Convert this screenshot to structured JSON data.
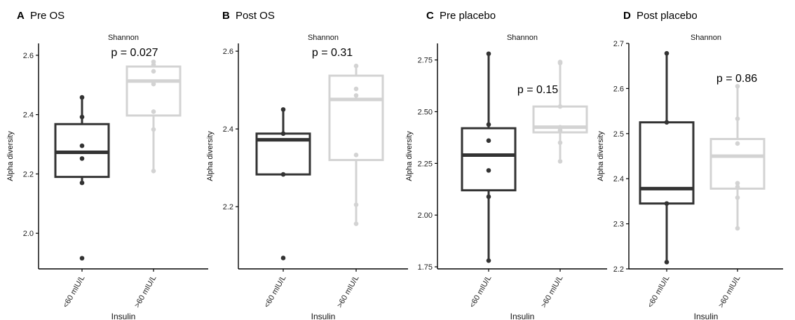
{
  "colors": {
    "group1": "#333333",
    "group2": "#d3d3d3",
    "axis": "#000000"
  },
  "chart_data": [
    {
      "type": "box",
      "panel_letter": "A",
      "panel_title": "Pre OS",
      "facet": "Shannon",
      "xlabel": "Insulin",
      "ylabel": "Alpha diversity",
      "categories": [
        "<60 mIU/L",
        ">60 mIU/L"
      ],
      "ylim": [
        1.88,
        2.64
      ],
      "yticks": [
        2.0,
        2.2,
        2.4,
        2.6
      ],
      "ytick_labels": [
        "2.0",
        "2.2",
        "2.4",
        "2.6"
      ],
      "pvalue": "p = 0.027",
      "boxes": [
        {
          "group": "<60 mIU/L",
          "min": 2.17,
          "q1": 2.19,
          "median": 2.273,
          "q3": 2.368,
          "max": 2.458,
          "points": [
            2.458,
            2.392,
            2.295,
            2.252,
            2.17,
            1.916
          ]
        },
        {
          "group": ">60 mIU/L",
          "min": 2.21,
          "q1": 2.397,
          "median": 2.513,
          "q3": 2.562,
          "max": 2.578,
          "points": [
            2.578,
            2.568,
            2.546,
            2.503,
            2.41,
            2.35,
            2.21
          ]
        }
      ]
    },
    {
      "type": "box",
      "panel_letter": "B",
      "panel_title": "Post OS",
      "facet": "Shannon",
      "xlabel": "Insulin",
      "ylabel": "Alpha diversity",
      "categories": [
        "<60 mIU/L",
        ">60 mIU/L"
      ],
      "ylim": [
        2.04,
        2.62
      ],
      "yticks": [
        2.2,
        2.4,
        2.6
      ],
      "ytick_labels": [
        "2.2",
        "2.4",
        "2.6"
      ],
      "pvalue": "p = 0.31",
      "boxes": [
        {
          "group": "<60 mIU/L",
          "min": 2.283,
          "q1": 2.283,
          "median": 2.372,
          "q3": 2.388,
          "max": 2.45,
          "points": [
            2.45,
            2.388,
            2.283,
            2.068
          ]
        },
        {
          "group": ">60 mIU/L",
          "min": 2.156,
          "q1": 2.32,
          "median": 2.476,
          "q3": 2.537,
          "max": 2.562,
          "points": [
            2.562,
            2.503,
            2.486,
            2.333,
            2.205,
            2.156
          ]
        }
      ]
    },
    {
      "type": "box",
      "panel_letter": "C",
      "panel_title": "Pre placebo",
      "facet": "Shannon",
      "xlabel": "Insulin",
      "ylabel": "Alpha diversity",
      "categories": [
        "<60 mIU/L",
        ">60 mIU/L"
      ],
      "ylim": [
        1.74,
        2.83
      ],
      "yticks": [
        1.75,
        2.0,
        2.25,
        2.5,
        2.75
      ],
      "ytick_labels": [
        "1.75",
        "2.00",
        "2.25",
        "2.50",
        "2.75"
      ],
      "pvalue": "p = 0.15",
      "boxes": [
        {
          "group": "<60 mIU/L",
          "min": 1.78,
          "q1": 2.12,
          "median": 2.29,
          "q3": 2.42,
          "max": 2.78,
          "points": [
            2.78,
            2.438,
            2.36,
            2.216,
            2.089,
            1.78
          ]
        },
        {
          "group": ">60 mIU/L",
          "min": 2.26,
          "q1": 2.4,
          "median": 2.425,
          "q3": 2.525,
          "max": 2.74,
          "points": [
            2.74,
            2.735,
            2.525,
            2.425,
            2.41,
            2.35,
            2.26
          ]
        }
      ]
    },
    {
      "type": "box",
      "panel_letter": "D",
      "panel_title": "Post placebo",
      "facet": "Shannon",
      "xlabel": "Insulin",
      "ylabel": "Alpha diversity",
      "categories": [
        "<60 mIU/L",
        ">60 mIU/L"
      ],
      "ylim": [
        2.2,
        2.7
      ],
      "yticks": [
        2.2,
        2.3,
        2.4,
        2.5,
        2.6,
        2.7
      ],
      "ytick_labels": [
        "2.2",
        "2.3",
        "2.4",
        "2.5",
        "2.6",
        "2.7"
      ],
      "pvalue": "p = 0.86",
      "boxes": [
        {
          "group": "<60 mIU/L",
          "min": 2.215,
          "q1": 2.345,
          "median": 2.378,
          "q3": 2.525,
          "max": 2.678,
          "points": [
            2.678,
            2.525,
            2.345,
            2.215
          ]
        },
        {
          "group": ">60 mIU/L",
          "min": 2.29,
          "q1": 2.378,
          "median": 2.45,
          "q3": 2.488,
          "max": 2.605,
          "points": [
            2.605,
            2.533,
            2.478,
            2.39,
            2.382,
            2.358,
            2.29
          ]
        }
      ]
    }
  ]
}
